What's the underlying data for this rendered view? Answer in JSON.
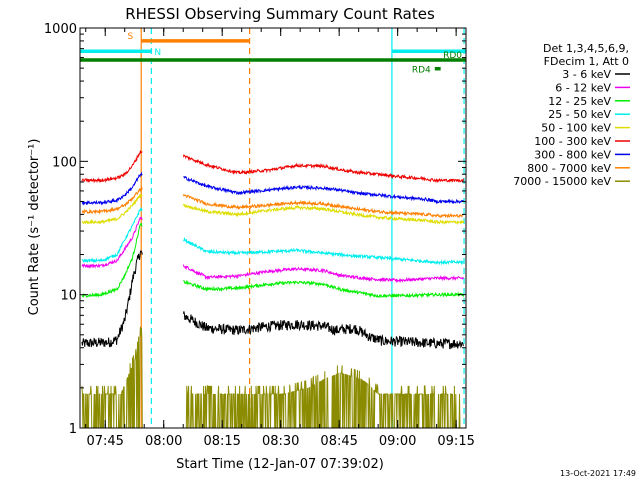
{
  "chart_data": {
    "type": "line",
    "title": "RHESSI Observing Summary Count Rates",
    "xlabel": "Start Time (12-Jan-07 07:39:02)",
    "ylabel": "Count Rate (s⁻¹ detector⁻¹)",
    "yscale": "log",
    "ylim": [
      1,
      1000
    ],
    "xlim_minutes": [
      -0.5,
      98.5
    ],
    "x_ticks": [
      {
        "label": "07:45",
        "minute": 5.97
      },
      {
        "label": "08:00",
        "minute": 20.97
      },
      {
        "label": "08:15",
        "minute": 35.97
      },
      {
        "label": "08:30",
        "minute": 50.97
      },
      {
        "label": "08:45",
        "minute": 65.97
      },
      {
        "label": "09:00",
        "minute": 80.97
      },
      {
        "label": "09:15",
        "minute": 95.97
      }
    ],
    "y_ticks": [
      {
        "label": "1",
        "value": 1
      },
      {
        "label": "10",
        "value": 10
      },
      {
        "label": "100",
        "value": 100
      },
      {
        "label": "1000",
        "value": 1000
      }
    ],
    "legend": {
      "placement": "right",
      "header": [
        "Det 1,3,4,5,6,9,",
        "FDecim 1, Att 0"
      ]
    },
    "series": [
      {
        "name": "3 - 6 keV",
        "color": "#000000",
        "points": [
          [
            0,
            4.3
          ],
          [
            7,
            4.4
          ],
          [
            9,
            4.6
          ],
          [
            11,
            6.5
          ],
          [
            12,
            9
          ],
          [
            13,
            13
          ],
          [
            14,
            17
          ],
          [
            15,
            21
          ],
          [
            26,
            7.0
          ],
          [
            32,
            5.6
          ],
          [
            40,
            5.4
          ],
          [
            48,
            5.8
          ],
          [
            55,
            6.0
          ],
          [
            62,
            5.8
          ],
          [
            65,
            5.4
          ],
          [
            70,
            5.6
          ],
          [
            74,
            4.8
          ],
          [
            77,
            4.5
          ],
          [
            85,
            4.4
          ],
          [
            91,
            4.3
          ],
          [
            98,
            4.3
          ]
        ],
        "gaps": [
          [
            15.5,
            26
          ]
        ]
      },
      {
        "name": "6 - 12 keV",
        "color": "#ee00ee",
        "points": [
          [
            0,
            16.5
          ],
          [
            5,
            16.5
          ],
          [
            9,
            18
          ],
          [
            11,
            22
          ],
          [
            13,
            27
          ],
          [
            15,
            38
          ],
          [
            26,
            16.5
          ],
          [
            32,
            13.5
          ],
          [
            40,
            13.8
          ],
          [
            48,
            15
          ],
          [
            55,
            15.6
          ],
          [
            62,
            15.2
          ],
          [
            66,
            14
          ],
          [
            70,
            13.5
          ],
          [
            76,
            13.0
          ],
          [
            81,
            12.8
          ],
          [
            91,
            13.3
          ],
          [
            98,
            13.3
          ]
        ],
        "gaps": [
          [
            15.5,
            26
          ]
        ]
      },
      {
        "name": "12 - 25 keV",
        "color": "#00ee00",
        "points": [
          [
            0,
            9.8
          ],
          [
            5,
            10
          ],
          [
            9,
            11
          ],
          [
            11,
            14
          ],
          [
            13,
            19
          ],
          [
            15,
            34
          ],
          [
            26,
            12.5
          ],
          [
            32,
            11
          ],
          [
            40,
            11.2
          ],
          [
            48,
            12
          ],
          [
            55,
            12.4
          ],
          [
            62,
            12
          ],
          [
            66,
            11
          ],
          [
            70,
            10.5
          ],
          [
            76,
            9.8
          ],
          [
            81,
            9.8
          ],
          [
            91,
            10
          ],
          [
            98,
            10
          ]
        ],
        "gaps": [
          [
            15.5,
            26
          ]
        ]
      },
      {
        "name": "25 - 50 keV",
        "color": "#00eeee",
        "points": [
          [
            0,
            18
          ],
          [
            5,
            18
          ],
          [
            9,
            20
          ],
          [
            11,
            26
          ],
          [
            13,
            33
          ],
          [
            15,
            44
          ],
          [
            26,
            26
          ],
          [
            32,
            21
          ],
          [
            40,
            20.5
          ],
          [
            48,
            21
          ],
          [
            55,
            21.5
          ],
          [
            62,
            20.5
          ],
          [
            66,
            20
          ],
          [
            70,
            19.5
          ],
          [
            76,
            19
          ],
          [
            81,
            18.5
          ],
          [
            91,
            17.5
          ],
          [
            98,
            17.5
          ]
        ],
        "gaps": [
          [
            15.5,
            26
          ]
        ]
      },
      {
        "name": "50 - 100 keV",
        "color": "#dddd00",
        "points": [
          [
            0,
            35
          ],
          [
            5,
            35
          ],
          [
            9,
            37
          ],
          [
            11,
            41
          ],
          [
            13,
            47
          ],
          [
            15,
            56
          ],
          [
            26,
            47
          ],
          [
            32,
            42
          ],
          [
            40,
            40
          ],
          [
            48,
            43
          ],
          [
            55,
            45
          ],
          [
            62,
            44
          ],
          [
            66,
            42
          ],
          [
            70,
            40
          ],
          [
            76,
            38
          ],
          [
            81,
            37
          ],
          [
            88,
            36
          ],
          [
            91,
            35
          ],
          [
            98,
            35
          ]
        ],
        "gaps": [
          [
            15.5,
            26
          ]
        ]
      },
      {
        "name": "100 - 300 keV",
        "color": "#ee0000",
        "points": [
          [
            0,
            72
          ],
          [
            5,
            72
          ],
          [
            9,
            75
          ],
          [
            11,
            80
          ],
          [
            13,
            93
          ],
          [
            15,
            118
          ],
          [
            26,
            110
          ],
          [
            32,
            94
          ],
          [
            40,
            82
          ],
          [
            48,
            86
          ],
          [
            55,
            93
          ],
          [
            62,
            92
          ],
          [
            66,
            87
          ],
          [
            70,
            83
          ],
          [
            76,
            80
          ],
          [
            81,
            77
          ],
          [
            88,
            74
          ],
          [
            91,
            72
          ],
          [
            98,
            72
          ]
        ],
        "gaps": [
          [
            15.5,
            26
          ]
        ]
      },
      {
        "name": "300 - 800 keV",
        "color": "#0000ee",
        "points": [
          [
            0,
            49
          ],
          [
            5,
            49
          ],
          [
            9,
            51
          ],
          [
            11,
            56
          ],
          [
            13,
            64
          ],
          [
            15,
            80
          ],
          [
            26,
            76
          ],
          [
            32,
            65
          ],
          [
            40,
            58
          ],
          [
            48,
            61
          ],
          [
            55,
            64
          ],
          [
            62,
            63
          ],
          [
            66,
            61
          ],
          [
            70,
            58
          ],
          [
            76,
            56
          ],
          [
            81,
            54
          ],
          [
            88,
            52
          ],
          [
            91,
            50
          ],
          [
            98,
            50
          ]
        ],
        "gaps": [
          [
            15.5,
            26
          ]
        ]
      },
      {
        "name": "800 - 7000 keV",
        "color": "#ff8000",
        "points": [
          [
            0,
            42
          ],
          [
            5,
            42
          ],
          [
            9,
            44
          ],
          [
            11,
            47
          ],
          [
            13,
            53
          ],
          [
            15,
            62
          ],
          [
            26,
            56
          ],
          [
            32,
            48
          ],
          [
            40,
            45
          ],
          [
            48,
            47
          ],
          [
            55,
            49
          ],
          [
            62,
            48
          ],
          [
            66,
            46
          ],
          [
            70,
            44
          ],
          [
            76,
            42
          ],
          [
            81,
            41
          ],
          [
            88,
            40
          ],
          [
            91,
            39
          ],
          [
            98,
            39
          ]
        ],
        "gaps": [
          [
            15.5,
            26
          ]
        ]
      },
      {
        "name": "7000 - 15000 keV",
        "color": "#8b8b00",
        "points": [
          [
            0,
            1.8
          ],
          [
            10,
            1.8
          ],
          [
            12,
            2.5
          ],
          [
            14,
            3.5
          ],
          [
            15,
            5
          ],
          [
            26,
            1.8
          ],
          [
            52,
            1.8
          ],
          [
            58,
            2.0
          ],
          [
            62,
            2.3
          ],
          [
            66,
            2.6
          ],
          [
            72,
            2.3
          ],
          [
            76,
            1.8
          ],
          [
            91,
            1.8
          ],
          [
            98,
            1.8
          ]
        ],
        "gaps": [
          [
            15.5,
            26
          ]
        ]
      }
    ],
    "annotations": [
      {
        "text": "S",
        "color": "#ff8000"
      },
      {
        "text": "N",
        "color": "#00eeee"
      },
      {
        "text": "RD0",
        "color": "#008000"
      },
      {
        "text": "RD4",
        "color": "#008000"
      }
    ],
    "flag_bars": [
      {
        "name": "S",
        "color": "#ff8000",
        "start": 15.2,
        "end": 43.0,
        "level": 800
      },
      {
        "name": "N",
        "color": "#00eeee",
        "start": -0.5,
        "end": 17.8,
        "level": 670
      },
      {
        "name": "N",
        "color": "#00eeee",
        "start": 79.5,
        "end": 98.5,
        "level": 670
      },
      {
        "name": "RD0",
        "color": "#008000",
        "start": -0.5,
        "end": 98.5,
        "level": 575
      },
      {
        "name": "RD4",
        "color": "#008000",
        "start": 90.5,
        "end": 92.0,
        "level": 495
      }
    ],
    "vertical_markers": [
      {
        "minute": 15.2,
        "color": "#ff8000",
        "style": "solid"
      },
      {
        "minute": 17.8,
        "color": "#00eeee",
        "style": "dashed"
      },
      {
        "minute": 43.0,
        "color": "#ff8000",
        "style": "dashed"
      },
      {
        "minute": 79.5,
        "color": "#00eeee",
        "style": "solid"
      },
      {
        "minute": 98.0,
        "color": "#00eeee",
        "style": "dashed"
      }
    ],
    "footer_text": "13-Oct-2021 17:49"
  }
}
